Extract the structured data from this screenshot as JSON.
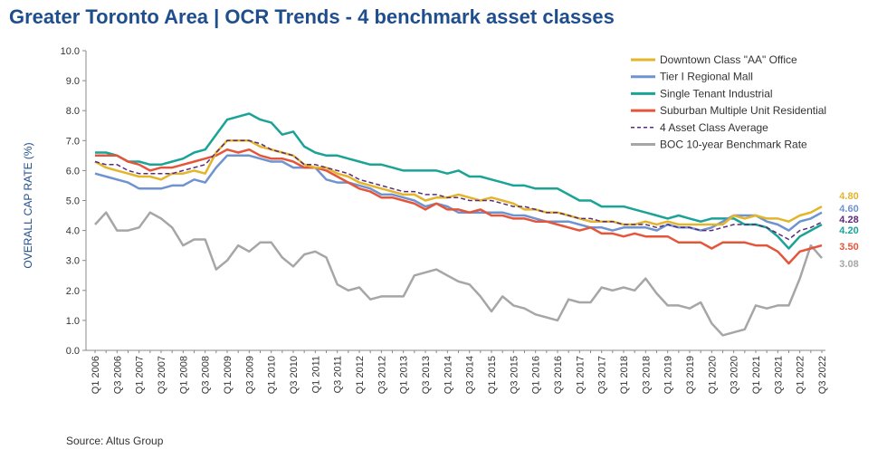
{
  "title": "Greater Toronto Area | OCR Trends - 4 benchmark asset classes",
  "source": "Source:  Altus Group",
  "chart_data": {
    "type": "line",
    "ylabel": "OVERALL CAP RATE (%)",
    "ylim": [
      0,
      10
    ],
    "yticks": [
      "0.0",
      "1.0",
      "2.0",
      "3.0",
      "4.0",
      "5.0",
      "6.0",
      "7.0",
      "8.0",
      "9.0",
      "10.0"
    ],
    "grid": false,
    "legend_position": "top-right",
    "x": [
      "Q1 2006",
      "Q2 2006",
      "Q3 2006",
      "Q4 2006",
      "Q1 2007",
      "Q2 2007",
      "Q3 2007",
      "Q4 2007",
      "Q1 2008",
      "Q2 2008",
      "Q3 2008",
      "Q4 2008",
      "Q1 2009",
      "Q2 2009",
      "Q3 2009",
      "Q4 2009",
      "Q1 2010",
      "Q2 2010",
      "Q3 2010",
      "Q4 2010",
      "Q1 2011",
      "Q2 2011",
      "Q3 2011",
      "Q4 2011",
      "Q1 2012",
      "Q2 2012",
      "Q3 2012",
      "Q4 2012",
      "Q1 2013",
      "Q2 2013",
      "Q3 2013",
      "Q4 2013",
      "Q1 2014",
      "Q2 2014",
      "Q3 2014",
      "Q4 2014",
      "Q1 2015",
      "Q2 2015",
      "Q3 2015",
      "Q4 2015",
      "Q1 2016",
      "Q2 2016",
      "Q3 2016",
      "Q4 2016",
      "Q1 2017",
      "Q2 2017",
      "Q3 2017",
      "Q4 2017",
      "Q1 2018",
      "Q2 2018",
      "Q3 2018",
      "Q4 2018",
      "Q1 2019",
      "Q2 2019",
      "Q3 2019",
      "Q4 2019",
      "Q1 2020",
      "Q2 2020",
      "Q3 2020",
      "Q4 2020",
      "Q1 2021",
      "Q2 2021",
      "Q3 2021",
      "Q4 2021",
      "Q1 2022",
      "Q2 2022",
      "Q3 2022"
    ],
    "xtick_labels": [
      "Q1 2006",
      "Q3 2006",
      "Q1 2007",
      "Q3 2007",
      "Q1 2008",
      "Q3 2008",
      "Q1 2009",
      "Q3 2009",
      "Q1 2010",
      "Q3 2010",
      "Q1 2011",
      "Q3 2011",
      "Q1 2012",
      "Q3 2012",
      "Q1 2013",
      "Q3 2013",
      "Q1 2014",
      "Q3 2014",
      "Q1 2015",
      "Q3 2015",
      "Q1 2016",
      "Q3 2016",
      "Q1 2017",
      "Q3 2017",
      "Q1 2018",
      "Q3 2018",
      "Q1 2019",
      "Q3 2019",
      "Q1 2020",
      "Q3 2020",
      "Q1 2021",
      "Q3 2021",
      "Q1 2022",
      "Q3 2022"
    ],
    "series": [
      {
        "name": "Downtown Class \"AA\" Office",
        "color": "#e3b52a",
        "dashed": false,
        "end_label": "4.80",
        "values": [
          6.3,
          6.1,
          6.0,
          5.9,
          5.8,
          5.8,
          5.7,
          5.9,
          5.9,
          6.0,
          5.9,
          6.6,
          7.0,
          7.0,
          7.0,
          6.8,
          6.7,
          6.6,
          6.5,
          6.2,
          6.1,
          6.1,
          5.9,
          5.8,
          5.6,
          5.5,
          5.4,
          5.3,
          5.2,
          5.2,
          5.0,
          5.1,
          5.1,
          5.2,
          5.1,
          5.0,
          5.1,
          5.0,
          4.9,
          4.7,
          4.7,
          4.6,
          4.6,
          4.5,
          4.4,
          4.3,
          4.3,
          4.3,
          4.2,
          4.2,
          4.3,
          4.2,
          4.3,
          4.2,
          4.2,
          4.2,
          4.2,
          4.2,
          4.5,
          4.4,
          4.5,
          4.4,
          4.4,
          4.3,
          4.5,
          4.6,
          4.8
        ]
      },
      {
        "name": "Tier I Regional Mall",
        "color": "#6f93d0",
        "dashed": false,
        "end_label": "4.60",
        "values": [
          5.9,
          5.8,
          5.7,
          5.6,
          5.4,
          5.4,
          5.4,
          5.5,
          5.5,
          5.7,
          5.6,
          6.1,
          6.5,
          6.5,
          6.5,
          6.4,
          6.3,
          6.3,
          6.1,
          6.1,
          6.1,
          5.7,
          5.6,
          5.6,
          5.5,
          5.4,
          5.2,
          5.2,
          5.1,
          5.0,
          4.8,
          4.9,
          4.8,
          4.6,
          4.6,
          4.6,
          4.6,
          4.6,
          4.5,
          4.5,
          4.4,
          4.3,
          4.3,
          4.3,
          4.2,
          4.1,
          4.1,
          4.0,
          4.1,
          4.1,
          4.1,
          4.0,
          4.2,
          4.1,
          4.1,
          4.0,
          4.1,
          4.3,
          4.5,
          4.5,
          4.5,
          4.3,
          4.2,
          4.0,
          4.3,
          4.4,
          4.6
        ]
      },
      {
        "name": "Single Tenant Industrial",
        "color": "#1aa396",
        "dashed": false,
        "end_label": "4.20",
        "values": [
          6.6,
          6.6,
          6.5,
          6.3,
          6.3,
          6.2,
          6.2,
          6.3,
          6.4,
          6.6,
          6.7,
          7.2,
          7.7,
          7.8,
          7.9,
          7.7,
          7.6,
          7.2,
          7.3,
          6.8,
          6.6,
          6.5,
          6.5,
          6.4,
          6.3,
          6.2,
          6.2,
          6.1,
          6.0,
          6.0,
          6.0,
          6.0,
          5.9,
          6.0,
          5.8,
          5.8,
          5.7,
          5.6,
          5.5,
          5.5,
          5.4,
          5.4,
          5.4,
          5.2,
          5.0,
          5.0,
          4.8,
          4.8,
          4.8,
          4.7,
          4.6,
          4.5,
          4.4,
          4.5,
          4.4,
          4.3,
          4.4,
          4.4,
          4.4,
          4.2,
          4.2,
          4.1,
          3.8,
          3.4,
          3.8,
          4.0,
          4.2
        ]
      },
      {
        "name": "Suburban Multiple Unit Residential",
        "color": "#e4553a",
        "dashed": false,
        "end_label": "3.50",
        "values": [
          6.5,
          6.5,
          6.5,
          6.3,
          6.2,
          6.0,
          6.1,
          6.1,
          6.2,
          6.3,
          6.4,
          6.5,
          6.7,
          6.6,
          6.7,
          6.5,
          6.4,
          6.4,
          6.3,
          6.1,
          6.1,
          6.0,
          5.8,
          5.6,
          5.4,
          5.3,
          5.1,
          5.1,
          5.0,
          4.9,
          4.7,
          4.9,
          4.7,
          4.7,
          4.6,
          4.7,
          4.5,
          4.5,
          4.4,
          4.4,
          4.3,
          4.3,
          4.2,
          4.1,
          4.0,
          4.1,
          3.9,
          3.9,
          3.8,
          3.9,
          3.8,
          3.8,
          3.8,
          3.6,
          3.6,
          3.6,
          3.4,
          3.6,
          3.6,
          3.6,
          3.5,
          3.5,
          3.3,
          2.9,
          3.3,
          3.4,
          3.5
        ]
      },
      {
        "name": "4 Asset Class Average",
        "color": "#5b2a7a",
        "dashed": true,
        "end_label": "4.28",
        "values": [
          6.3,
          6.2,
          6.2,
          6.0,
          5.9,
          5.9,
          5.9,
          5.9,
          6.0,
          6.1,
          6.2,
          6.6,
          7.0,
          7.0,
          7.0,
          6.9,
          6.7,
          6.6,
          6.5,
          6.2,
          6.2,
          6.1,
          6.0,
          5.9,
          5.7,
          5.6,
          5.5,
          5.4,
          5.3,
          5.3,
          5.2,
          5.2,
          5.1,
          5.1,
          5.0,
          5.0,
          5.0,
          4.9,
          4.8,
          4.8,
          4.7,
          4.6,
          4.6,
          4.5,
          4.4,
          4.4,
          4.3,
          4.3,
          4.2,
          4.2,
          4.2,
          4.1,
          4.2,
          4.1,
          4.1,
          4.0,
          4.0,
          4.1,
          4.2,
          4.2,
          4.2,
          4.1,
          3.9,
          3.7,
          4.0,
          4.1,
          4.28
        ]
      },
      {
        "name": "BOC 10-year Benchmark Rate",
        "color": "#a6a6a6",
        "dashed": false,
        "end_label": "3.08",
        "values": [
          4.2,
          4.6,
          4.0,
          4.0,
          4.1,
          4.6,
          4.4,
          4.1,
          3.5,
          3.7,
          3.7,
          2.7,
          3.0,
          3.5,
          3.3,
          3.6,
          3.6,
          3.1,
          2.8,
          3.2,
          3.3,
          3.1,
          2.2,
          2.0,
          2.1,
          1.7,
          1.8,
          1.8,
          1.8,
          2.5,
          2.6,
          2.7,
          2.5,
          2.3,
          2.2,
          1.8,
          1.3,
          1.8,
          1.5,
          1.4,
          1.2,
          1.1,
          1.0,
          1.7,
          1.6,
          1.6,
          2.1,
          2.0,
          2.1,
          2.0,
          2.4,
          1.9,
          1.5,
          1.5,
          1.4,
          1.6,
          0.9,
          0.5,
          0.6,
          0.7,
          1.5,
          1.4,
          1.5,
          1.5,
          2.4,
          3.5,
          3.08
        ]
      }
    ]
  }
}
